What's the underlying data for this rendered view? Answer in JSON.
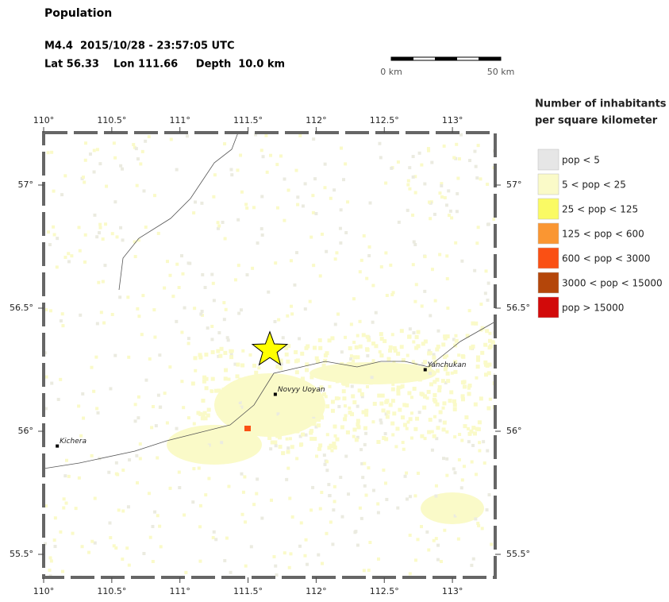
{
  "header": {
    "title": "Population",
    "event_line": "M4.4  2015/10/28 - 23:57:05 UTC",
    "location_line": "Lat 56.33    Lon 111.66     Depth  10.0 km"
  },
  "scale_bar": {
    "start_label": "0 km",
    "end_label": "50 km"
  },
  "map": {
    "lon_ticks": [
      {
        "value": 110,
        "label": "110°"
      },
      {
        "value": 110.5,
        "label": "110.5°"
      },
      {
        "value": 111,
        "label": "111°"
      },
      {
        "value": 111.5,
        "label": "111.5°"
      },
      {
        "value": 112,
        "label": "112°"
      },
      {
        "value": 112.5,
        "label": "112.5°"
      },
      {
        "value": 113,
        "label": "113°"
      }
    ],
    "lat_ticks": [
      {
        "value": 57,
        "label": "57°"
      },
      {
        "value": 56.5,
        "label": "56.5°"
      },
      {
        "value": 56,
        "label": "56°"
      },
      {
        "value": 55.5,
        "label": "55.5°"
      }
    ],
    "epicenter": {
      "lat": 56.33,
      "lon": 111.66
    },
    "places": [
      {
        "name": "Kichera",
        "lat": 55.94,
        "lon": 110.1
      },
      {
        "name": "Novyy Uoyan",
        "lat": 56.15,
        "lon": 111.7
      },
      {
        "name": "Yanchukan",
        "lat": 56.25,
        "lon": 112.8
      }
    ]
  },
  "legend": {
    "title_lines": [
      "Number of inhabitants",
      "per square kilometer"
    ],
    "items": [
      {
        "label": "pop < 5",
        "color": "#e6e6e6"
      },
      {
        "label": "5 < pop < 25",
        "color": "#fafac8"
      },
      {
        "label": "25 < pop < 125",
        "color": "#fafa64"
      },
      {
        "label": "125 < pop < 600",
        "color": "#fa9632"
      },
      {
        "label": "600 < pop < 3000",
        "color": "#fa5014"
      },
      {
        "label": "3000 < pop < 15000",
        "color": "#b4460a"
      },
      {
        "label": "pop > 15000",
        "color": "#d20a0a"
      }
    ]
  }
}
